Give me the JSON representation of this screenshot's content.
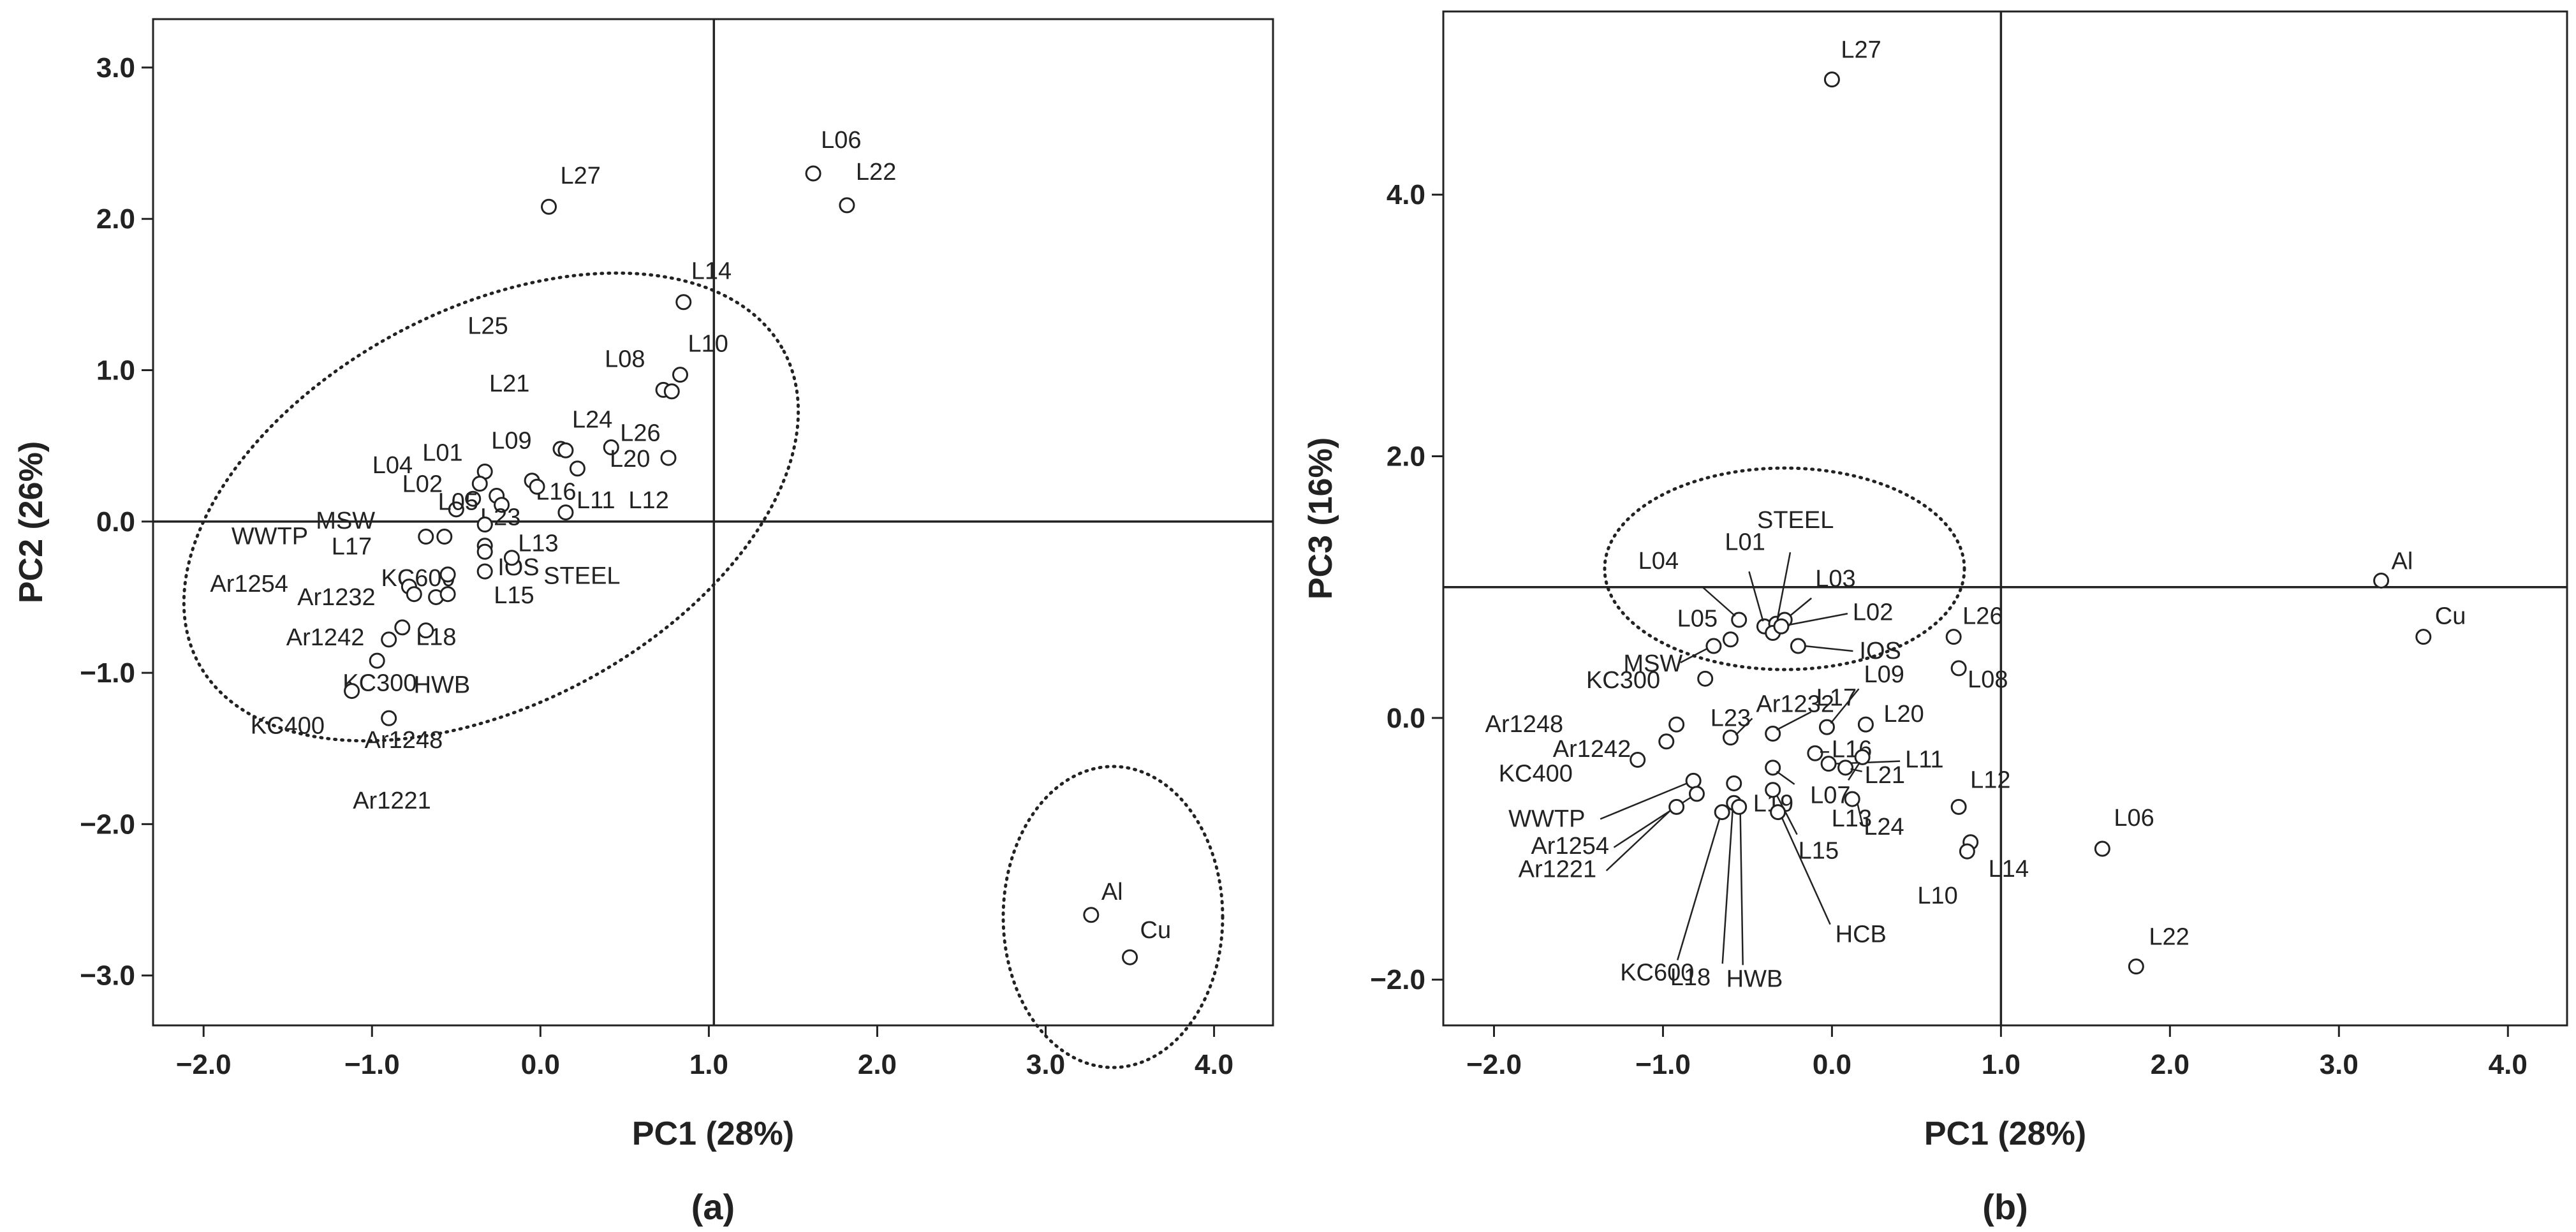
{
  "chart_data": [
    {
      "type": "scatter",
      "panel_label": "(a)",
      "xlabel": "PC1 (28%)",
      "ylabel": "PC2 (26%)",
      "xlim": [
        -2.3,
        4.35
      ],
      "ylim": [
        -3.33,
        3.32
      ],
      "x_ticks": [
        -2.0,
        -1.0,
        0.0,
        1.0,
        2.0,
        3.0,
        4.0
      ],
      "x_tick_labels": [
        "−2.0",
        "−1.0",
        "0.0",
        "1.0",
        "2.0",
        "3.0",
        "4.0"
      ],
      "y_ticks": [
        3.0,
        2.0,
        1.0,
        0.0,
        -1.0,
        -2.0,
        -3.0
      ],
      "y_tick_labels": [
        "3.0",
        "2.0",
        "1.0",
        "0.0",
        "−1.0",
        "−2.0",
        "−3.0"
      ],
      "reference_lines": {
        "x": 1.03,
        "y": 0.0
      },
      "grid": false,
      "points": [
        {
          "label": "L27",
          "x": 0.05,
          "y": 2.08
        },
        {
          "label": "L06",
          "x": 1.62,
          "y": 2.3
        },
        {
          "label": "L22",
          "x": 1.82,
          "y": 2.09
        },
        {
          "label": "L14",
          "x": 0.85,
          "y": 1.45
        },
        {
          "label": "L08",
          "x": 0.73,
          "y": 0.87
        },
        {
          "label": "L10",
          "x": 0.83,
          "y": 0.97
        },
        {
          "label": "L25",
          "x": 0.78,
          "y": 0.86
        },
        {
          "label": "L21",
          "x": 0.12,
          "y": 0.48
        },
        {
          "label": "L24",
          "x": 0.15,
          "y": 0.47
        },
        {
          "label": "L26",
          "x": 0.42,
          "y": 0.49
        },
        {
          "label": "L20",
          "x": 0.76,
          "y": 0.42
        },
        {
          "label": "L12",
          "x": 0.22,
          "y": 0.35
        },
        {
          "label": "L09",
          "x": -0.33,
          "y": 0.33
        },
        {
          "label": "L01",
          "x": -0.36,
          "y": 0.25
        },
        {
          "label": "L04",
          "x": -0.4,
          "y": 0.15
        },
        {
          "label": "L02",
          "x": -0.26,
          "y": 0.17
        },
        {
          "label": "L16",
          "x": -0.05,
          "y": 0.27
        },
        {
          "label": "L11",
          "x": -0.02,
          "y": 0.23
        },
        {
          "label": "MSW",
          "x": -0.5,
          "y": 0.08
        },
        {
          "label": "L05",
          "x": -0.23,
          "y": 0.11
        },
        {
          "label": "L23",
          "x": 0.15,
          "y": 0.06
        },
        {
          "label": "L13",
          "x": -0.33,
          "y": -0.02
        },
        {
          "label": "L17",
          "x": -0.68,
          "y": -0.1
        },
        {
          "label": "WWTP",
          "x": -0.57,
          "y": -0.1
        },
        {
          "label": "IOS",
          "x": -0.33,
          "y": -0.16
        },
        {
          "label": "STEEL",
          "x": -0.33,
          "y": -0.2
        },
        {
          "label": "KC600",
          "x": -0.17,
          "y": -0.24
        },
        {
          "label": "Ar1254",
          "x": -0.78,
          "y": -0.43
        },
        {
          "label": "Ar1232",
          "x": -0.55,
          "y": -0.35
        },
        {
          "label": "L15",
          "x": -0.33,
          "y": -0.33
        },
        {
          "label": "HWB",
          "x": -0.62,
          "y": -0.5
        },
        {
          "label": "L18",
          "x": -0.55,
          "y": -0.48
        },
        {
          "label": "KC300",
          "x": -0.75,
          "y": -0.48
        },
        {
          "label": "Ar1242",
          "x": -0.82,
          "y": -0.7
        },
        {
          "label": "Ar1248",
          "x": -0.9,
          "y": -0.78
        },
        {
          "label": "KC400",
          "x": -0.68,
          "y": -0.72
        },
        {
          "label": "Ar1221",
          "x": -0.97,
          "y": -0.92
        },
        {
          "label": "",
          "x": -1.12,
          "y": -1.12
        },
        {
          "label": "",
          "x": -0.9,
          "y": -1.3
        },
        {
          "label": "Al",
          "x": 3.27,
          "y": -2.6
        },
        {
          "label": "Cu",
          "x": 3.5,
          "y": -2.88
        }
      ]
    },
    {
      "type": "scatter",
      "panel_label": "(b)",
      "xlabel": "PC1 (28%)",
      "ylabel": "PC3 (16%)",
      "xlim": [
        -2.3,
        4.35
      ],
      "ylim": [
        -2.35,
        5.4
      ],
      "x_ticks": [
        -2.0,
        -1.0,
        0.0,
        1.0,
        2.0,
        3.0,
        4.0
      ],
      "x_tick_labels": [
        "−2.0",
        "−1.0",
        "0.0",
        "1.0",
        "2.0",
        "3.0",
        "4.0"
      ],
      "y_ticks": [
        4.0,
        2.0,
        0.0,
        -2.0
      ],
      "y_tick_labels": [
        "4.0",
        "2.0",
        "0.0",
        "−2.0"
      ],
      "reference_lines": {
        "x": 1.0,
        "y": 1.0
      },
      "grid": false,
      "points": [
        {
          "label": "L27",
          "x": 0.0,
          "y": 4.88
        },
        {
          "label": "Al",
          "x": 3.25,
          "y": 1.05
        },
        {
          "label": "Cu",
          "x": 3.5,
          "y": 0.62
        },
        {
          "label": "L06",
          "x": 1.6,
          "y": -1.0
        },
        {
          "label": "L22",
          "x": 1.8,
          "y": -1.9
        },
        {
          "label": "L26",
          "x": 0.72,
          "y": 0.62
        },
        {
          "label": "L08",
          "x": 0.75,
          "y": 0.38
        },
        {
          "label": "L04",
          "x": -0.55,
          "y": 0.75
        },
        {
          "label": "L01",
          "x": -0.4,
          "y": 0.7
        },
        {
          "label": "STEEL",
          "x": -0.33,
          "y": 0.72
        },
        {
          "label": "L03",
          "x": -0.28,
          "y": 0.75
        },
        {
          "label": "L05",
          "x": -0.35,
          "y": 0.65
        },
        {
          "label": "L02",
          "x": -0.3,
          "y": 0.7
        },
        {
          "label": "IOS",
          "x": -0.2,
          "y": 0.55
        },
        {
          "label": "MSW",
          "x": -0.6,
          "y": 0.6
        },
        {
          "label": "KC300",
          "x": -0.7,
          "y": 0.55
        },
        {
          "label": "L23",
          "x": -0.75,
          "y": 0.3
        },
        {
          "label": "L17",
          "x": -0.35,
          "y": -0.12
        },
        {
          "label": "L09",
          "x": -0.03,
          "y": -0.07
        },
        {
          "label": "L20",
          "x": 0.2,
          "y": -0.05
        },
        {
          "label": "L16",
          "x": -0.1,
          "y": -0.27
        },
        {
          "label": "L11",
          "x": -0.02,
          "y": -0.35
        },
        {
          "label": "L07",
          "x": 0.18,
          "y": -0.3
        },
        {
          "label": "L21",
          "x": 0.08,
          "y": -0.38
        },
        {
          "label": "L24",
          "x": 0.12,
          "y": -0.62
        },
        {
          "label": "L13",
          "x": -0.35,
          "y": -0.38
        },
        {
          "label": "L19",
          "x": -0.58,
          "y": -0.5
        },
        {
          "label": "L12",
          "x": 0.75,
          "y": -0.68
        },
        {
          "label": "L14",
          "x": 0.82,
          "y": -0.95
        },
        {
          "label": "L10",
          "x": 0.8,
          "y": -1.02
        },
        {
          "label": "Ar1248",
          "x": -0.92,
          "y": -0.05
        },
        {
          "label": "Ar1242",
          "x": -0.98,
          "y": -0.18
        },
        {
          "label": "Ar1232",
          "x": -0.6,
          "y": -0.15
        },
        {
          "label": "KC400",
          "x": -1.15,
          "y": -0.32
        },
        {
          "label": "WWTP",
          "x": -0.82,
          "y": -0.48
        },
        {
          "label": "Ar1254",
          "x": -0.8,
          "y": -0.58
        },
        {
          "label": "Ar1221",
          "x": -0.92,
          "y": -0.68
        },
        {
          "label": "KC600",
          "x": -0.65,
          "y": -0.72
        },
        {
          "label": "L18",
          "x": -0.58,
          "y": -0.65
        },
        {
          "label": "HWB",
          "x": -0.55,
          "y": -0.68
        },
        {
          "label": "HCB",
          "x": -0.32,
          "y": -0.72
        },
        {
          "label": "L15",
          "x": -0.35,
          "y": -0.55
        }
      ]
    }
  ]
}
